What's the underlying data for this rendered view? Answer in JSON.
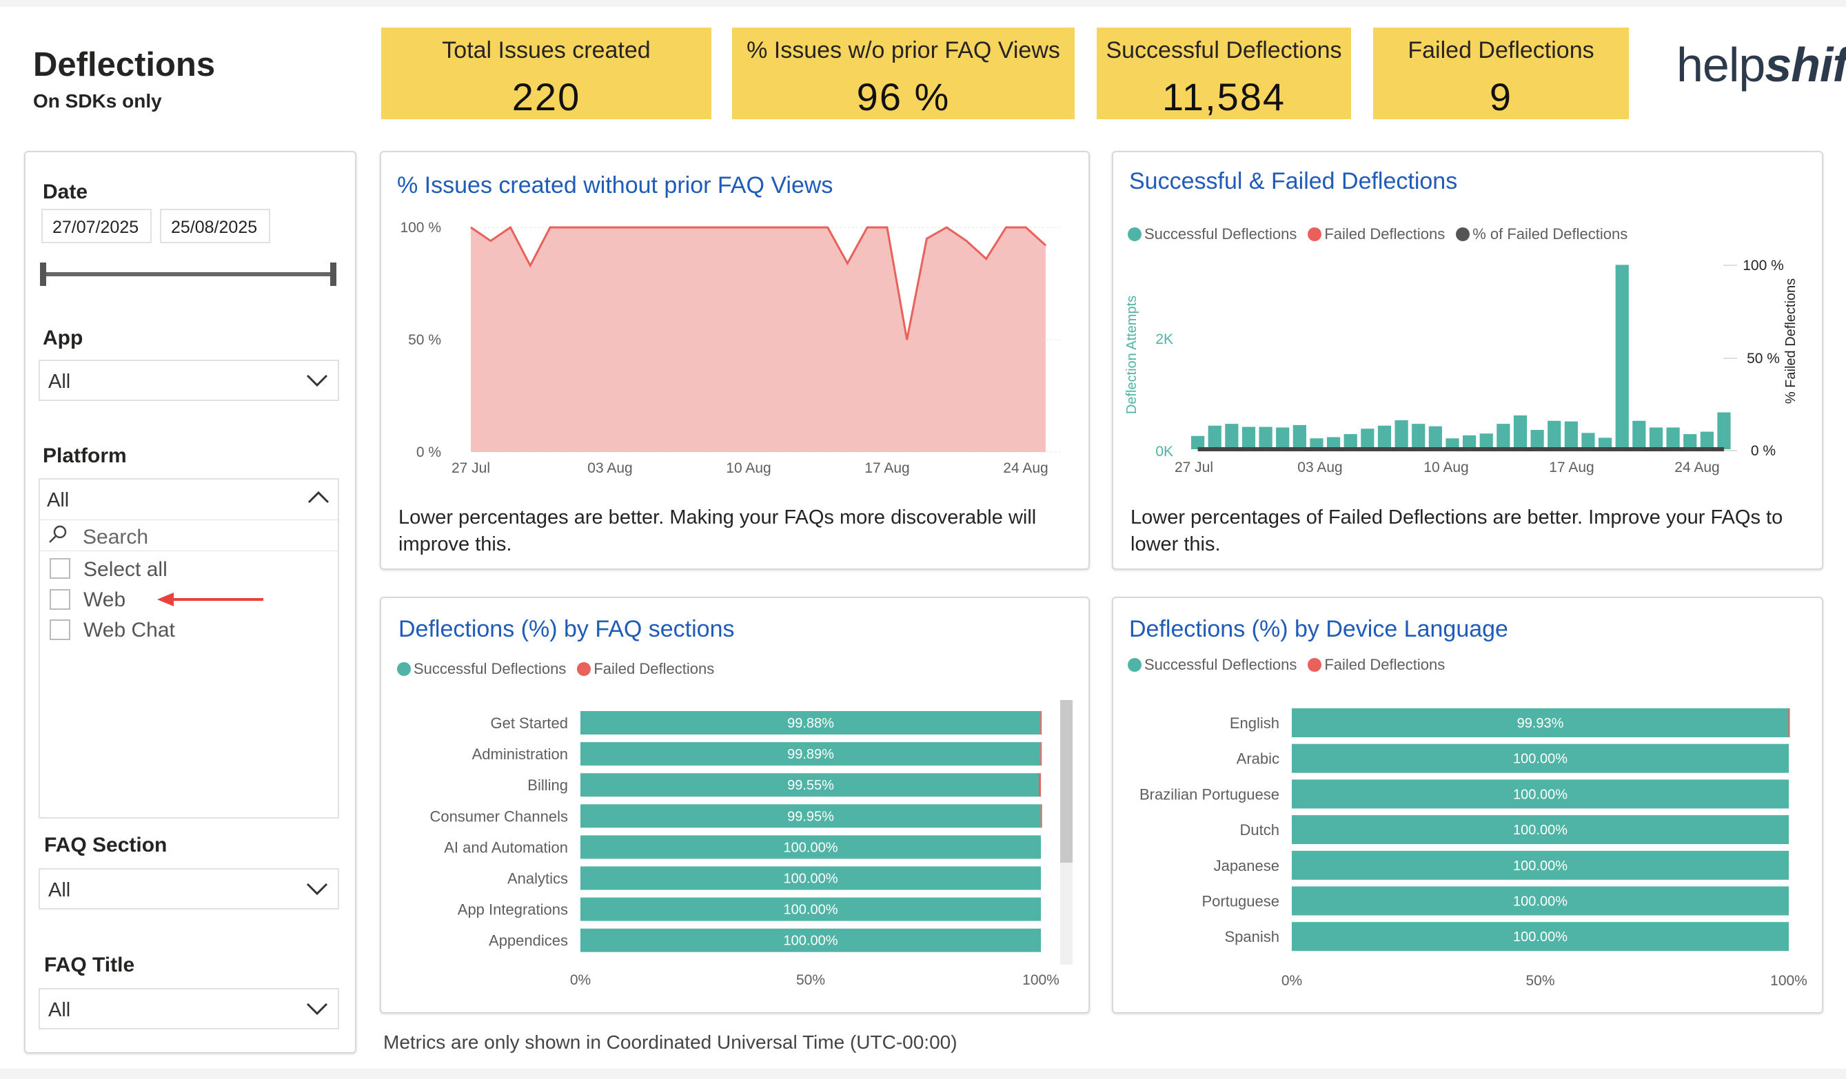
{
  "header": {
    "title": "Deflections",
    "subtitle": "On SDKs only"
  },
  "kpis": [
    {
      "label": "Total Issues created",
      "value": "220"
    },
    {
      "label": "% Issues w/o prior FAQ Views",
      "value": "96 %"
    },
    {
      "label": "Successful Deflections",
      "value": "11,584"
    },
    {
      "label": "Failed Deflections",
      "value": "9"
    }
  ],
  "logo": {
    "part1": "help",
    "part2": "shift"
  },
  "filters": {
    "date": {
      "label": "Date",
      "start": "27/07/2025",
      "end": "25/08/2025"
    },
    "app": {
      "label": "App",
      "value": "All"
    },
    "platform": {
      "label": "Platform",
      "value": "All",
      "search_placeholder": "Search",
      "options": [
        "Select all",
        "Web",
        "Web Chat"
      ]
    },
    "faq_section": {
      "label": "FAQ Section",
      "value": "All"
    },
    "faq_title": {
      "label": "FAQ Title",
      "value": "All"
    }
  },
  "colors": {
    "teal": "#4fb3a5",
    "red": "#e8615a",
    "area": "#f5c1bf",
    "kpi": "#f7d55d",
    "title_blue": "#1f5bb8",
    "dark": "#555555"
  },
  "icons": {
    "search": "search-icon",
    "chevron": "chevron-down-icon",
    "arrow": "arrow-left-icon"
  },
  "charts": {
    "issues_pct": {
      "title": "% Issues created without prior FAQ Views",
      "description": "Lower percentages are better. Making your FAQs more discoverable will improve this.",
      "chart_data": {
        "type": "area",
        "x_ticks": [
          "27 Jul",
          "03 Aug",
          "10 Aug",
          "17 Aug",
          "24 Aug"
        ],
        "y_ticks": [
          "100 %",
          "50 %",
          "0 %"
        ],
        "ylim": [
          0,
          100
        ],
        "values": [
          100,
          94,
          100,
          83,
          100,
          100,
          100,
          100,
          100,
          100,
          100,
          100,
          100,
          100,
          100,
          100,
          100,
          100,
          100,
          84,
          100,
          100,
          50,
          95,
          100,
          94,
          86,
          100,
          100,
          92
        ]
      }
    },
    "deflections": {
      "title": "Successful & Failed Deflections",
      "description": "Lower percentages of Failed Deflections are better. Improve your FAQs to lower this.",
      "legend": [
        "Successful Deflections",
        "Failed Deflections",
        "% of Failed Deflections"
      ],
      "chart_data": {
        "type": "bar",
        "ylabel": "Deflection Attempts",
        "y2label": "% Failed Deflections",
        "y_ticks": [
          "2K",
          "0K"
        ],
        "y2_ticks": [
          "100 %",
          "50 %",
          "0 %"
        ],
        "x_ticks": [
          "27 Jul",
          "03 Aug",
          "10 Aug",
          "17 Aug",
          "24 Aug"
        ],
        "ylim": [
          0,
          3100
        ],
        "successful": [
          220,
          390,
          420,
          370,
          370,
          360,
          400,
          180,
          200,
          250,
          340,
          390,
          480,
          420,
          380,
          180,
          230,
          260,
          420,
          560,
          320,
          470,
          460,
          270,
          190,
          3050,
          470,
          360,
          360,
          250,
          290,
          610
        ],
        "failed_pct": [
          0,
          0,
          0,
          0,
          0,
          0,
          0,
          0,
          0,
          0,
          0,
          0,
          0,
          0,
          0,
          0,
          0,
          0,
          0,
          0,
          0,
          0,
          0,
          0,
          0,
          0,
          0,
          0,
          0,
          0,
          0,
          0
        ]
      }
    },
    "faq_sections": {
      "title": "Deflections (%) by FAQ sections",
      "legend": [
        "Successful Deflections",
        "Failed Deflections"
      ],
      "chart_data": {
        "type": "bar",
        "orientation": "horizontal-stacked",
        "categories": [
          "Get Started",
          "Administration",
          "Billing",
          "Consumer Channels",
          "AI and Automation",
          "Analytics",
          "App Integrations",
          "Appendices"
        ],
        "successful": [
          99.88,
          99.89,
          99.55,
          99.95,
          100.0,
          100.0,
          100.0,
          100.0
        ],
        "labels": [
          "99.88%",
          "99.89%",
          "99.55%",
          "99.95%",
          "100.00%",
          "100.00%",
          "100.00%",
          "100.00%"
        ],
        "x_ticks": [
          "0%",
          "50%",
          "100%"
        ],
        "xlim": [
          0,
          100
        ]
      }
    },
    "device_language": {
      "title": "Deflections (%) by Device Language",
      "legend": [
        "Successful Deflections",
        "Failed Deflections"
      ],
      "chart_data": {
        "type": "bar",
        "orientation": "horizontal-stacked",
        "categories": [
          "English",
          "Arabic",
          "Brazilian Portuguese",
          "Dutch",
          "Japanese",
          "Portuguese",
          "Spanish"
        ],
        "successful": [
          99.93,
          100.0,
          100.0,
          100.0,
          100.0,
          100.0,
          100.0
        ],
        "labels": [
          "99.93%",
          "100.00%",
          "100.00%",
          "100.00%",
          "100.00%",
          "100.00%",
          "100.00%"
        ],
        "x_ticks": [
          "0%",
          "50%",
          "100%"
        ],
        "xlim": [
          0,
          100
        ]
      }
    }
  },
  "footer": {
    "note": "Metrics are only shown in Coordinated Universal Time (UTC-00:00)"
  }
}
